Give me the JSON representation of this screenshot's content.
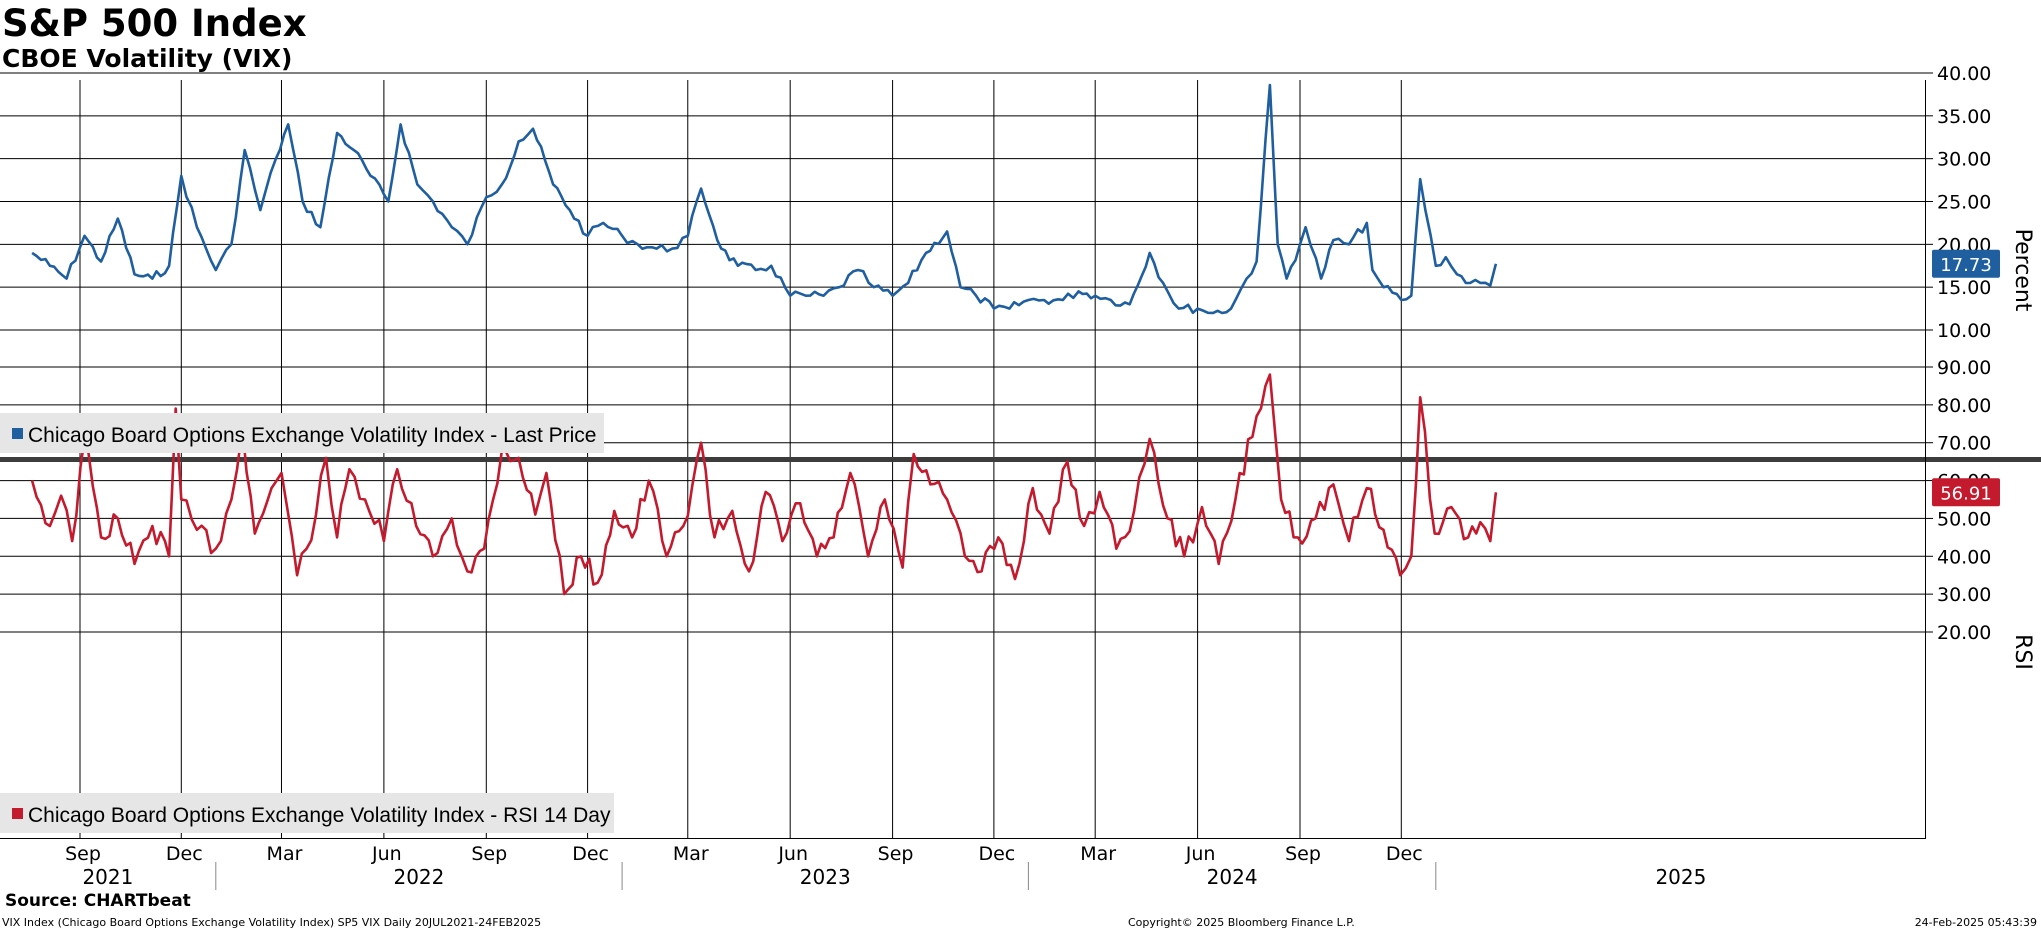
{
  "header": {
    "title": "S&P 500 Index",
    "subtitle": "CBOE Volatility (VIX)"
  },
  "source": "Source: CHARTbeat",
  "footer": {
    "left": "VIX Index (Chicago Board Options Exchange Volatility Index) SP5 VIX  Daily 20JUL2021-24FEB2025",
    "center": "Copyright© 2025 Bloomberg Finance L.P.",
    "right": "24-Feb-2025 05:43:39"
  },
  "colors": {
    "price_line": "#1f5fa0",
    "rsi_line": "#c41a2e",
    "grid": "#000000",
    "separator": "#3c3c3c",
    "legend_bg": "#e6e6e6"
  },
  "x_axis": {
    "months": [
      "Sep",
      "Dec",
      "Mar",
      "Jun",
      "Sep",
      "Dec",
      "Mar",
      "Jun",
      "Sep",
      "Dec",
      "Mar",
      "Jun",
      "Sep",
      "Dec"
    ],
    "years": [
      "2021",
      "2022",
      "2023",
      "2024",
      "2025"
    ]
  },
  "chart_data": [
    {
      "type": "line",
      "ylabel": "Percent",
      "ylim": [
        10,
        40
      ],
      "yticks": [
        "10.00",
        "15.00",
        "20.00",
        "25.00",
        "30.00",
        "35.00",
        "40.00"
      ],
      "last_value_label": "17.73",
      "grid": true,
      "legend_position": "bottom-left",
      "series": [
        {
          "name": "Chicago Board Options Exchange Volatility Index - Last Price",
          "x": [
            "2021-07-20",
            "2021-08-05",
            "2021-08-20",
            "2021-09-05",
            "2021-09-20",
            "2021-10-05",
            "2021-10-20",
            "2021-11-05",
            "2021-11-20",
            "2021-12-01",
            "2021-12-15",
            "2022-01-01",
            "2022-01-15",
            "2022-01-27",
            "2022-02-10",
            "2022-02-24",
            "2022-03-07",
            "2022-03-20",
            "2022-04-05",
            "2022-04-20",
            "2022-05-05",
            "2022-05-20",
            "2022-06-05",
            "2022-06-16",
            "2022-07-01",
            "2022-07-15",
            "2022-08-01",
            "2022-08-15",
            "2022-09-01",
            "2022-09-15",
            "2022-09-30",
            "2022-10-13",
            "2022-10-31",
            "2022-11-15",
            "2022-12-01",
            "2022-12-15",
            "2023-01-01",
            "2023-01-15",
            "2023-02-01",
            "2023-02-15",
            "2023-03-01",
            "2023-03-13",
            "2023-03-31",
            "2023-04-15",
            "2023-05-01",
            "2023-05-15",
            "2023-06-01",
            "2023-06-15",
            "2023-07-01",
            "2023-07-15",
            "2023-08-01",
            "2023-08-15",
            "2023-09-01",
            "2023-09-15",
            "2023-10-01",
            "2023-10-20",
            "2023-11-01",
            "2023-11-15",
            "2023-12-01",
            "2023-12-15",
            "2024-01-01",
            "2024-01-15",
            "2024-02-01",
            "2024-02-15",
            "2024-03-01",
            "2024-03-15",
            "2024-04-01",
            "2024-04-19",
            "2024-05-01",
            "2024-05-15",
            "2024-06-01",
            "2024-06-15",
            "2024-07-01",
            "2024-07-15",
            "2024-07-24",
            "2024-08-05",
            "2024-08-12",
            "2024-08-20",
            "2024-09-01",
            "2024-09-06",
            "2024-09-20",
            "2024-10-01",
            "2024-10-15",
            "2024-10-31",
            "2024-11-05",
            "2024-11-15",
            "2024-12-01",
            "2024-12-10",
            "2024-12-18",
            "2025-01-01",
            "2025-01-10",
            "2025-01-20",
            "2025-02-01",
            "2025-02-10",
            "2025-02-19",
            "2025-02-24"
          ],
          "values": [
            19.0,
            17.5,
            16.0,
            21.0,
            18.0,
            23.0,
            16.5,
            16.0,
            17.5,
            28.0,
            22.0,
            17.0,
            20.0,
            31.0,
            24.0,
            30.0,
            34.0,
            25.0,
            22.0,
            33.0,
            31.0,
            28.0,
            25.0,
            34.0,
            27.0,
            25.0,
            22.0,
            20.0,
            25.5,
            27.0,
            32.0,
            33.5,
            27.0,
            24.0,
            21.0,
            22.5,
            21.0,
            20.0,
            19.5,
            19.5,
            21.0,
            26.5,
            19.5,
            17.5,
            17.0,
            17.5,
            14.0,
            14.0,
            14.0,
            15.0,
            17.0,
            15.0,
            14.0,
            15.5,
            19.0,
            21.5,
            15.0,
            14.0,
            12.5,
            12.5,
            13.5,
            13.5,
            13.5,
            14.5,
            14.0,
            13.5,
            13.0,
            19.0,
            15.5,
            12.5,
            12.5,
            12.0,
            12.5,
            16.0,
            18.0,
            38.6,
            20.0,
            16.0,
            20.0,
            22.0,
            16.0,
            20.5,
            20.0,
            22.5,
            17.0,
            15.0,
            13.5,
            14.0,
            27.6,
            17.5,
            18.5,
            16.5,
            15.5,
            15.5,
            15.2,
            17.73
          ]
        }
      ]
    },
    {
      "type": "line",
      "ylabel": "RSI",
      "ylim": [
        20,
        90
      ],
      "yticks": [
        "20.00",
        "30.00",
        "40.00",
        "50.00",
        "60.00",
        "70.00",
        "80.00",
        "90.00"
      ],
      "last_value_label": "56.91",
      "grid": true,
      "legend_position": "bottom-left",
      "series": [
        {
          "name": "Chicago Board Options Exchange Volatility Index - RSI 14 Day",
          "x": [
            "2021-07-20",
            "2021-08-05",
            "2021-08-15",
            "2021-08-25",
            "2021-09-05",
            "2021-09-20",
            "2021-10-05",
            "2021-10-20",
            "2021-11-05",
            "2021-11-20",
            "2021-11-26",
            "2021-12-01",
            "2021-12-15",
            "2022-01-01",
            "2022-01-15",
            "2022-01-25",
            "2022-02-05",
            "2022-02-20",
            "2022-03-01",
            "2022-03-15",
            "2022-04-01",
            "2022-04-10",
            "2022-04-20",
            "2022-05-01",
            "2022-05-15",
            "2022-06-01",
            "2022-06-13",
            "2022-06-30",
            "2022-07-15",
            "2022-08-01",
            "2022-08-15",
            "2022-08-30",
            "2022-09-15",
            "2022-09-30",
            "2022-10-15",
            "2022-10-25",
            "2022-11-10",
            "2022-11-25",
            "2022-12-10",
            "2022-12-25",
            "2023-01-10",
            "2023-01-25",
            "2023-02-10",
            "2023-02-25",
            "2023-03-13",
            "2023-03-25",
            "2023-04-10",
            "2023-04-25",
            "2023-05-10",
            "2023-05-25",
            "2023-06-10",
            "2023-06-25",
            "2023-07-10",
            "2023-07-25",
            "2023-08-10",
            "2023-08-25",
            "2023-09-10",
            "2023-09-20",
            "2023-10-05",
            "2023-10-20",
            "2023-11-05",
            "2023-11-20",
            "2023-12-05",
            "2023-12-20",
            "2024-01-05",
            "2024-01-20",
            "2024-02-05",
            "2024-02-20",
            "2024-03-05",
            "2024-03-20",
            "2024-04-05",
            "2024-04-19",
            "2024-05-05",
            "2024-05-20",
            "2024-06-05",
            "2024-06-20",
            "2024-07-05",
            "2024-07-24",
            "2024-08-05",
            "2024-08-15",
            "2024-08-30",
            "2024-09-15",
            "2024-10-01",
            "2024-10-15",
            "2024-10-31",
            "2024-11-15",
            "2024-11-30",
            "2024-12-10",
            "2024-12-18",
            "2024-12-31",
            "2025-01-15",
            "2025-01-30",
            "2025-02-10",
            "2025-02-19",
            "2025-02-24"
          ],
          "values": [
            60.0,
            48.0,
            56.0,
            44.0,
            71.0,
            45.0,
            50.0,
            38.0,
            48.0,
            40.0,
            79.0,
            55.0,
            47.0,
            42.0,
            55.0,
            74.0,
            46.0,
            58.0,
            62.0,
            35.0,
            51.0,
            66.0,
            45.0,
            63.0,
            55.0,
            44.0,
            63.0,
            48.0,
            40.0,
            50.0,
            36.0,
            42.0,
            68.0,
            66.0,
            51.0,
            62.0,
            30.0,
            40.0,
            33.0,
            52.0,
            45.0,
            60.0,
            40.0,
            48.0,
            70.0,
            45.0,
            52.0,
            36.0,
            57.0,
            44.0,
            54.0,
            40.0,
            45.0,
            62.0,
            40.0,
            55.0,
            37.0,
            67.0,
            59.0,
            55.0,
            40.0,
            36.0,
            45.0,
            34.0,
            58.0,
            46.0,
            65.0,
            48.0,
            57.0,
            42.0,
            52.0,
            71.0,
            50.0,
            40.0,
            53.0,
            38.0,
            55.0,
            77.0,
            88.0,
            55.0,
            45.0,
            50.0,
            59.0,
            44.0,
            58.0,
            47.0,
            35.0,
            40.0,
            82.0,
            46.0,
            53.0,
            45.0,
            49.0,
            44.0,
            56.91
          ]
        }
      ]
    }
  ]
}
